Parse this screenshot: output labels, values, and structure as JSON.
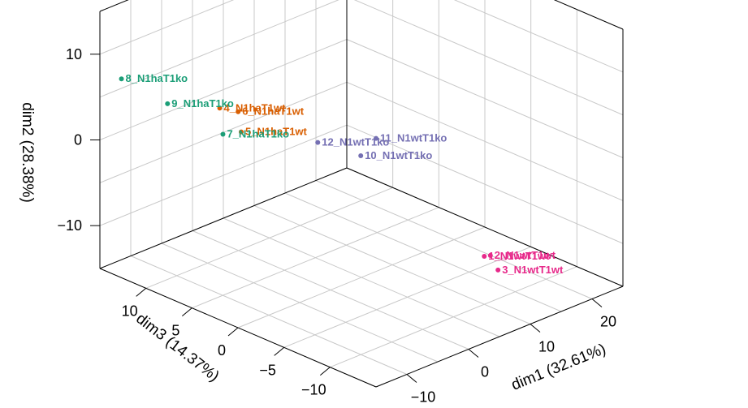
{
  "chart_data": {
    "type": "scatter",
    "projection": "3d",
    "axes": {
      "x": {
        "label": "dim1 (32.61%)",
        "lim": [
          -15,
          25
        ],
        "ticks": [
          "−10",
          "0",
          "10",
          "20"
        ],
        "tick_values": [
          -10,
          0,
          10,
          20
        ]
      },
      "y": {
        "label": "dim2 (28.38%)",
        "lim": [
          -15,
          15
        ],
        "ticks": [
          "−10",
          "0",
          "10"
        ],
        "tick_values": [
          -10,
          0,
          10
        ]
      },
      "z": {
        "label": "dim3 (14.37%)",
        "lim": [
          -15,
          15
        ],
        "ticks": [
          "−10",
          "−5",
          "0",
          "5",
          "10"
        ],
        "tick_values": [
          -10,
          -5,
          0,
          5,
          10
        ]
      }
    },
    "grid": true,
    "colors": {
      "N1wtT1wt": "#e7298a",
      "N1haT1wt": "#d95f02",
      "N1haT1ko": "#1b9e77",
      "N1wtT1ko": "#7570b3"
    },
    "points": [
      {
        "label": "1_N1wtT1wt",
        "group": "N1wtT1wt",
        "x": 8.5,
        "y": -8.5,
        "z": -11.0
      },
      {
        "label": "2_N1wtT1wt",
        "group": "N1wtT1wt",
        "x": 8.0,
        "y": -7.8,
        "z": -12.0
      },
      {
        "label": "3_N1wtT1wt",
        "group": "N1wtT1wt",
        "x": 7.0,
        "y": -8.5,
        "z": -13.5
      },
      {
        "label": "4_N1haT1wt",
        "group": "N1haT1wt",
        "x": -10.5,
        "y": 7.0,
        "z": 5.0
      },
      {
        "label": "5_N1haT1wt",
        "group": "N1haT1wt",
        "x": -10.0,
        "y": 5.0,
        "z": 3.0
      },
      {
        "label": "6_N1haT1wt",
        "group": "N1haT1wt",
        "x": -10.5,
        "y": 7.5,
        "z": 3.0
      },
      {
        "label": "7_N1haT1ko",
        "group": "N1haT1ko",
        "x": -7.0,
        "y": 2.0,
        "z": 7.0
      },
      {
        "label": "8_N1haT1ko",
        "group": "N1haT1ko",
        "x": -13.0,
        "y": 7.0,
        "z": 14.0
      },
      {
        "label": "9_N1haT1ko",
        "group": "N1haT1ko",
        "x": -11.5,
        "y": 5.5,
        "z": 10.0
      },
      {
        "label": "10_N1wtT1ko",
        "group": "N1wtT1ko",
        "x": -13.0,
        "y": 10.0,
        "z": -12.0
      },
      {
        "label": "11_N1wtT1ko",
        "group": "N1wtT1ko",
        "x": -15.0,
        "y": 14.0,
        "z": -15.0
      },
      {
        "label": "12_N1wtT1ko",
        "group": "N1wtT1ko",
        "x": -14.0,
        "y": 10.0,
        "z": -8.0
      }
    ]
  }
}
